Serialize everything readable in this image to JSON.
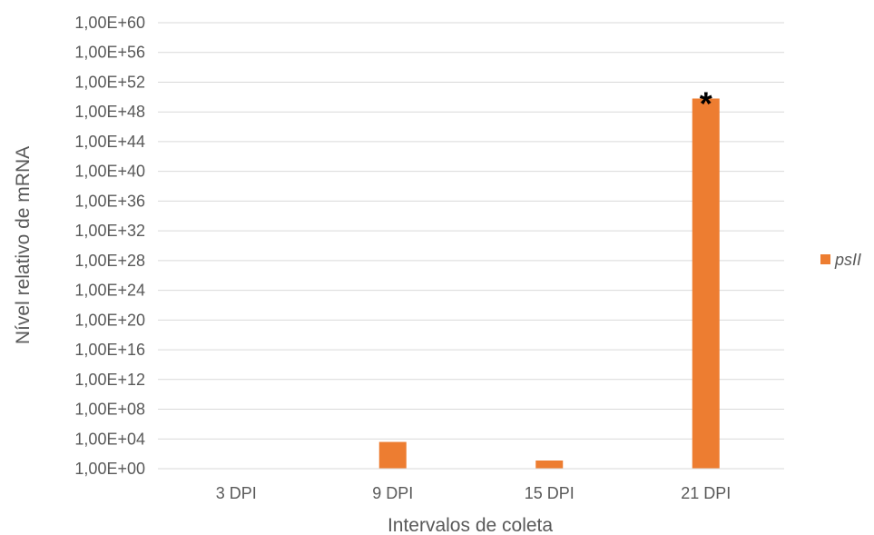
{
  "chart_data": {
    "type": "bar",
    "xlabel": "Intervalos de coleta",
    "ylabel": "Nível relativo de mRNA",
    "categories": [
      "3 DPI",
      "9 DPI",
      "15 DPI",
      "21 DPI"
    ],
    "series": [
      {
        "name": "psII",
        "color": "#ED7D31",
        "values_log10": [
          0,
          3.6,
          1.1,
          49.8
        ],
        "values": [
          "1,00E+00",
          "4,00E+03",
          "1,26E+01",
          "6,31E+49"
        ]
      }
    ],
    "yscale": "log10",
    "ylim_log10": [
      0,
      60
    ],
    "yticks": [
      "1,00E+00",
      "1,00E+04",
      "1,00E+08",
      "1,00E+12",
      "1,00E+16",
      "1,00E+20",
      "1,00E+24",
      "1,00E+28",
      "1,00E+32",
      "1,00E+36",
      "1,00E+40",
      "1,00E+44",
      "1,00E+48",
      "1,00E+52",
      "1,00E+56",
      "1,00E+60"
    ],
    "grid": true,
    "legend_position": "right",
    "annotations": [
      {
        "category": "21 DPI",
        "text": "*"
      }
    ]
  }
}
